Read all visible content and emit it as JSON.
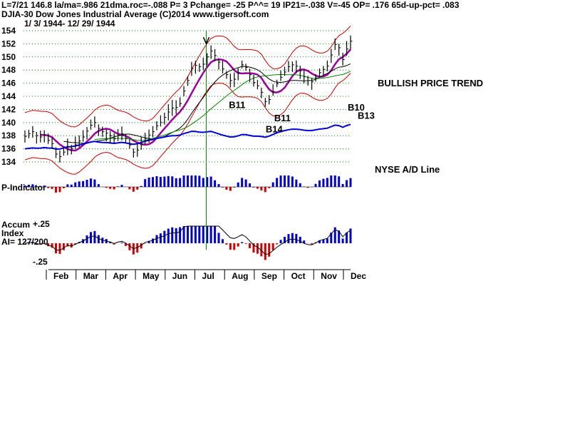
{
  "header": {
    "line1": "L=7/21   146.8   la/ma=.986 21dma.roc=-.088 P=   3 Pchange= -25 P^^= 19 IP21=-.038 V=-45 OP= .176 65d-up-pct= .083",
    "line2": "DJIA-30  Dow Jones Industrial Average   (C)2014 www.tigersoft.com",
    "line3": "1/ 3/ 1944- 12/ 29/ 1944"
  },
  "annotations": {
    "bullish": "BULLISH PRICE TREND",
    "ad_line": "NYSE A/D Line"
  },
  "signals": [
    {
      "label": "B11",
      "date": "Aug"
    },
    {
      "label": "B11",
      "date": "Sep"
    },
    {
      "label": "B14",
      "date": "Sep"
    },
    {
      "label": "B10",
      "date": "Dec"
    },
    {
      "label": "B13",
      "date": "Dec"
    }
  ],
  "panels": {
    "p_indicator_label": "P-Indicator",
    "accum_label_1": "Accum",
    "accum_label_2": "Index",
    "accum_ai": "AI= 127/200",
    "accum_top": "+.25",
    "accum_bottom": "-.25"
  },
  "colors": {
    "price_bars": "#000000",
    "bands": "#cc0000",
    "ma_purple": "#990099",
    "ma_black": "#000000",
    "ma_green": "#008800",
    "ad_line": "#0000dd",
    "positive_hist": "#0000cc",
    "negative_hist": "#cc0000",
    "gridlines": "#008800",
    "marker_line": "#008800"
  },
  "chart_data": {
    "type": "line",
    "title": "DJIA-30  Dow Jones Industrial Average",
    "date_range": "1/ 3/ 1944- 12/ 29/ 1944",
    "ylim": [
      134,
      154
    ],
    "y_ticks": [
      134,
      136,
      138,
      140,
      142,
      144,
      146,
      148,
      150,
      152,
      154
    ],
    "x_ticks": [
      "Feb",
      "Mar",
      "Apr",
      "May",
      "Jun",
      "Jul",
      "Aug",
      "Sep",
      "Oct",
      "Nov",
      "Dec"
    ],
    "grid": true,
    "vertical_marker": "Jul",
    "series": [
      {
        "kind": "price",
        "values": [
          137.9,
          138.3,
          138.6,
          138.0,
          137.8,
          138.1,
          137.3,
          136.8,
          135.2,
          134.8,
          135.5,
          136.3,
          136.0,
          136.6,
          137.2,
          137.8,
          138.7,
          139.6,
          140.0,
          139.1,
          138.6,
          138.4,
          138.0,
          137.5,
          138.0,
          138.3,
          137.6,
          136.6,
          135.5,
          135.8,
          136.6,
          137.6,
          138.1,
          138.6,
          139.5,
          140.0,
          140.8,
          141.6,
          142.2,
          142.3,
          142.9,
          144.8,
          146.4,
          148.2,
          148.7,
          148.5,
          148.9,
          150.0,
          150.9,
          150.2,
          149.2,
          148.2,
          147.3,
          146.4,
          146.6,
          147.6,
          148.8,
          148.4,
          147.3,
          146.1,
          145.6,
          144.6,
          143.2,
          143.5,
          144.7,
          145.9,
          146.9,
          147.7,
          148.5,
          148.8,
          148.6,
          147.9,
          147.0,
          146.4,
          146.2,
          146.8,
          147.6,
          148.1,
          148.6,
          150.3,
          151.9,
          151.4,
          149.6,
          151.2,
          152.4
        ]
      }
    ]
  }
}
